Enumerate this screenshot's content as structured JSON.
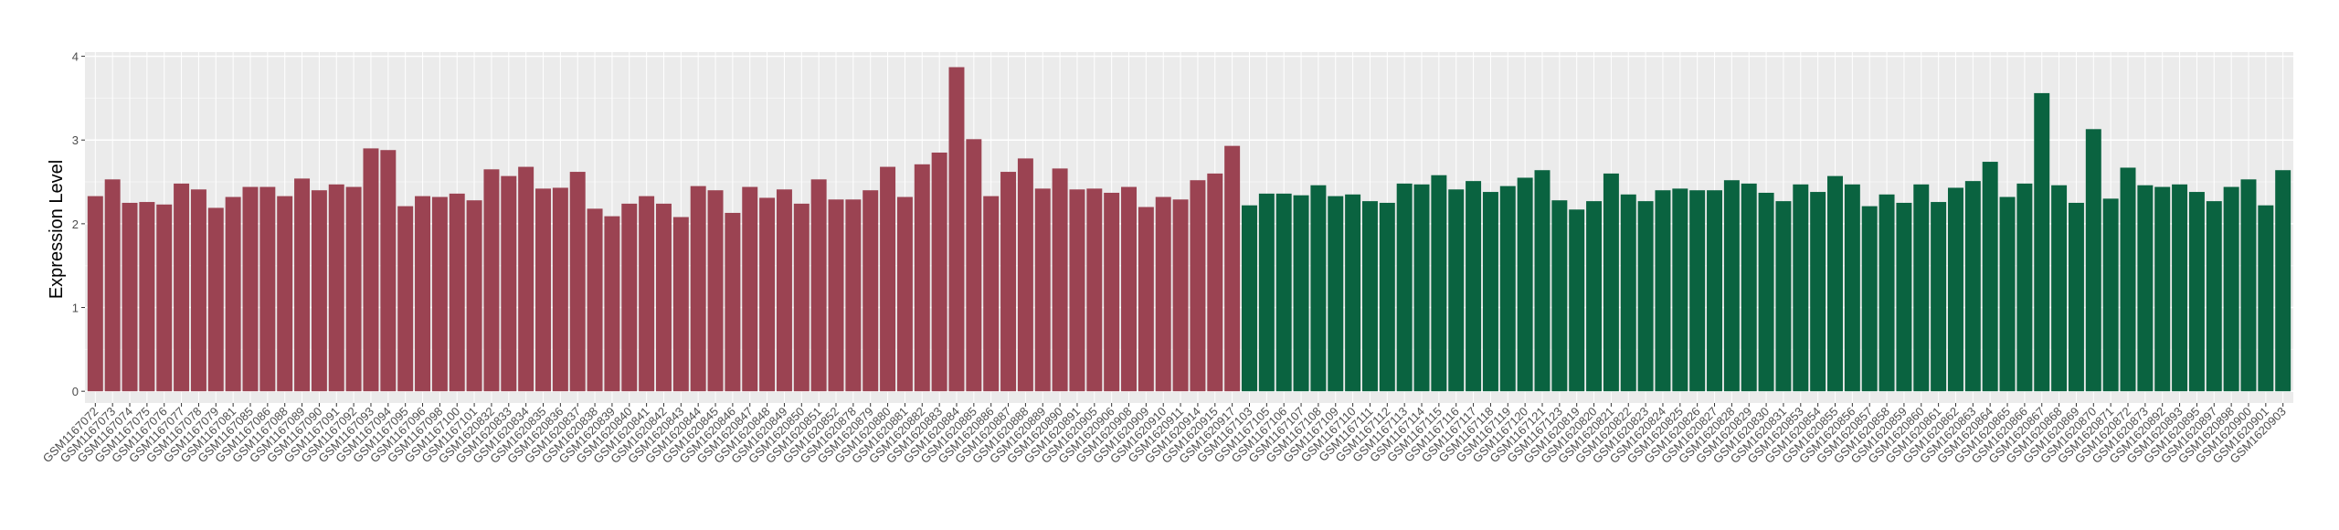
{
  "chart_data": {
    "type": "bar",
    "y_label": "Expression Level",
    "ylim": [
      -0.14,
      4.05
    ],
    "yticks": [
      0,
      1,
      2,
      3,
      4
    ],
    "grid": true,
    "series": [
      {
        "color": "#9b4352",
        "categories": [
          "GSM1167072",
          "GSM1167073",
          "GSM1167074",
          "GSM1167075",
          "GSM1167076",
          "GSM1167077",
          "GSM1167078",
          "GSM1167079",
          "GSM1167081",
          "GSM1167085",
          "GSM1167086",
          "GSM1167088",
          "GSM1167089",
          "GSM1167090",
          "GSM1167091",
          "GSM1167092",
          "GSM1167093",
          "GSM1167094",
          "GSM1167095",
          "GSM1167096",
          "GSM1167098",
          "GSM1167100",
          "GSM1167101",
          "GSM1620832",
          "GSM1620833",
          "GSM1620834",
          "GSM1620835",
          "GSM1620836",
          "GSM1620837",
          "GSM1620838",
          "GSM1620839",
          "GSM1620840",
          "GSM1620841",
          "GSM1620842",
          "GSM1620843",
          "GSM1620844",
          "GSM1620845",
          "GSM1620846",
          "GSM1620847",
          "GSM1620848",
          "GSM1620849",
          "GSM1620850",
          "GSM1620851",
          "GSM1620852",
          "GSM1620878",
          "GSM1620879",
          "GSM1620880",
          "GSM1620881",
          "GSM1620882",
          "GSM1620883",
          "GSM1620884",
          "GSM1620885",
          "GSM1620886",
          "GSM1620887",
          "GSM1620888",
          "GSM1620889",
          "GSM1620890",
          "GSM1620891",
          "GSM1620905",
          "GSM1620906",
          "GSM1620908",
          "GSM1620909",
          "GSM1620910",
          "GSM1620911",
          "GSM1620914",
          "GSM1620915",
          "GSM1620917"
        ],
        "values": [
          2.33,
          2.53,
          2.25,
          2.26,
          2.23,
          2.48,
          2.41,
          2.19,
          2.32,
          2.44,
          2.44,
          2.33,
          2.54,
          2.4,
          2.47,
          2.44,
          2.9,
          2.88,
          2.21,
          2.33,
          2.32,
          2.36,
          2.28,
          2.65,
          2.57,
          2.68,
          2.42,
          2.43,
          2.62,
          2.18,
          2.09,
          2.24,
          2.33,
          2.24,
          2.08,
          2.45,
          2.4,
          2.13,
          2.44,
          2.31,
          2.41,
          2.24,
          2.53,
          2.29,
          2.29,
          2.4,
          2.68,
          2.32,
          2.71,
          2.85,
          3.87,
          3.01,
          2.33,
          2.62,
          2.78,
          2.42,
          2.66,
          2.41,
          2.42,
          2.37,
          2.44,
          2.2,
          2.32,
          2.29,
          2.52,
          2.6,
          2.93
        ]
      },
      {
        "color": "#0a6340",
        "categories": [
          "GSM1167103",
          "GSM1167105",
          "GSM1167106",
          "GSM1167107",
          "GSM1167108",
          "GSM1167109",
          "GSM1167110",
          "GSM1167111",
          "GSM1167112",
          "GSM1167113",
          "GSM1167114",
          "GSM1167115",
          "GSM1167116",
          "GSM1167117",
          "GSM1167118",
          "GSM1167119",
          "GSM1167120",
          "GSM1167121",
          "GSM1167123",
          "GSM1620819",
          "GSM1620820",
          "GSM1620821",
          "GSM1620822",
          "GSM1620823",
          "GSM1620824",
          "GSM1620825",
          "GSM1620826",
          "GSM1620827",
          "GSM1620828",
          "GSM1620829",
          "GSM1620830",
          "GSM1620831",
          "GSM1620853",
          "GSM1620854",
          "GSM1620855",
          "GSM1620856",
          "GSM1620857",
          "GSM1620858",
          "GSM1620859",
          "GSM1620860",
          "GSM1620861",
          "GSM1620862",
          "GSM1620863",
          "GSM1620864",
          "GSM1620865",
          "GSM1620866",
          "GSM1620867",
          "GSM1620868",
          "GSM1620869",
          "GSM1620870",
          "GSM1620871",
          "GSM1620872",
          "GSM1620873",
          "GSM1620892",
          "GSM1620893",
          "GSM1620895",
          "GSM1620897",
          "GSM1620898",
          "GSM1620900",
          "GSM1620901",
          "GSM1620903"
        ],
        "values": [
          2.22,
          2.36,
          2.36,
          2.34,
          2.46,
          2.33,
          2.35,
          2.27,
          2.25,
          2.48,
          2.47,
          2.58,
          2.41,
          2.51,
          2.38,
          2.45,
          2.55,
          2.64,
          2.28,
          2.17,
          2.27,
          2.6,
          2.35,
          2.27,
          2.4,
          2.42,
          2.4,
          2.4,
          2.52,
          2.48,
          2.37,
          2.27,
          2.47,
          2.38,
          2.57,
          2.47,
          2.21,
          2.35,
          2.25,
          2.47,
          2.26,
          2.43,
          2.51,
          2.74,
          2.32,
          2.48,
          3.56,
          2.46,
          2.25,
          3.13,
          2.3,
          2.67,
          2.46,
          2.44,
          2.47,
          2.38,
          2.27,
          2.44,
          2.53,
          2.22,
          2.64
        ]
      }
    ]
  }
}
